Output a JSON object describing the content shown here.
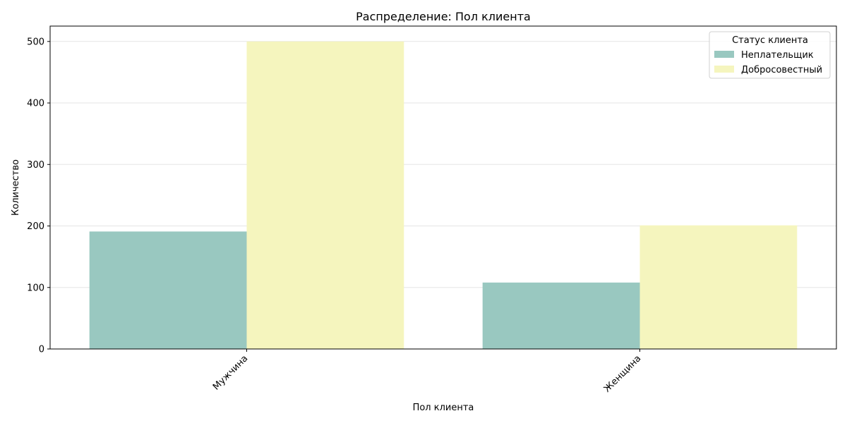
{
  "chart_data": {
    "type": "bar",
    "title": "Распределение: Пол клиента",
    "xlabel": "Пол клиента",
    "ylabel": "Количество",
    "categories": [
      "Мужчина",
      "Женщина"
    ],
    "series": [
      {
        "name": "Неплательщик",
        "values": [
          191,
          108
        ],
        "color": "#99c8c0"
      },
      {
        "name": "Добросовестный",
        "values": [
          500,
          201
        ],
        "color": "#f5f5be"
      }
    ],
    "ylim": [
      0,
      525
    ],
    "yticks": [
      0,
      100,
      200,
      300,
      400,
      500
    ],
    "grid": "y",
    "legend": {
      "title": "Статус клиента",
      "placement": "top-right"
    }
  }
}
